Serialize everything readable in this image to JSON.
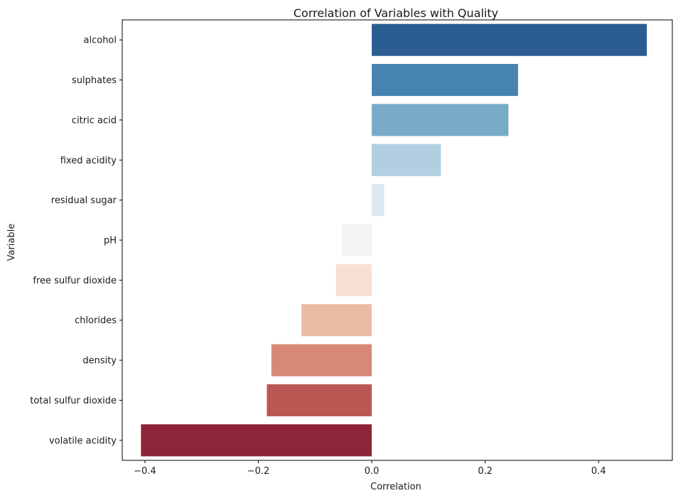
{
  "chart_data": {
    "type": "bar",
    "orientation": "horizontal",
    "title": "Correlation of Variables with Quality",
    "xlabel": "Correlation",
    "ylabel": "Variable",
    "xlim": [
      -0.44,
      0.53
    ],
    "xticks": [
      -0.4,
      -0.2,
      0.0,
      0.2,
      0.4
    ],
    "xtick_labels": [
      "−0.4",
      "−0.2",
      "0.0",
      "0.2",
      "0.4"
    ],
    "grid": false,
    "legend": "none",
    "categories": [
      "alcohol",
      "sulphates",
      "citric acid",
      "fixed acidity",
      "residual sugar",
      "pH",
      "free sulfur dioxide",
      "chlorides",
      "density",
      "total sulfur dioxide",
      "volatile acidity"
    ],
    "values": [
      0.485,
      0.258,
      0.241,
      0.122,
      0.022,
      -0.053,
      -0.063,
      -0.124,
      -0.177,
      -0.185,
      -0.407
    ],
    "colors": [
      "#2b5d92",
      "#4683b1",
      "#78abc8",
      "#b1cfe1",
      "#dce9f2",
      "#f4f4f4",
      "#f8dfd3",
      "#ecbba4",
      "#d68976",
      "#bb5753",
      "#8e2437"
    ]
  }
}
